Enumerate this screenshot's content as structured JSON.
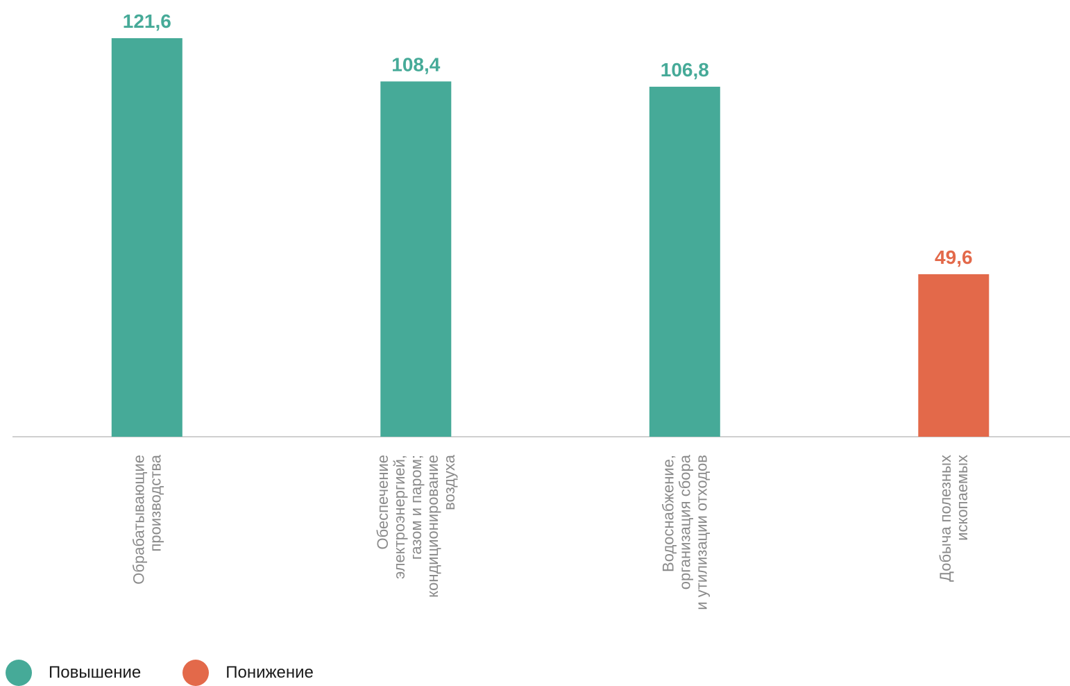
{
  "chart_data": {
    "type": "bar",
    "categories": [
      [
        "Обрабатывающие",
        "производства"
      ],
      [
        "Обеспечение",
        "электроэнергией,",
        "газом и паром;",
        "кондиционирование",
        "воздуха"
      ],
      [
        "Водоснабжение,",
        "организация сбора",
        "и утилизации отходов"
      ],
      [
        "Добыча полезных",
        "ископаемых"
      ]
    ],
    "values": [
      121.6,
      108.4,
      106.8,
      49.6
    ],
    "value_labels": [
      "121,6",
      "108,4",
      "106,8",
      "49,6"
    ],
    "bar_status": [
      "increase",
      "increase",
      "increase",
      "decrease"
    ],
    "ylim": [
      0,
      121.6
    ],
    "grid": false,
    "legend_position": "bottom-left"
  },
  "legend": [
    {
      "key": "increase",
      "label": "Повышение",
      "color": "#46aa98"
    },
    {
      "key": "decrease",
      "label": "Понижение",
      "color": "#e3694a"
    }
  ],
  "colors": {
    "increase": "#46aa98",
    "decrease": "#e3694a",
    "axis": "#cfcfcf",
    "category_text": "#8a8a8a"
  }
}
